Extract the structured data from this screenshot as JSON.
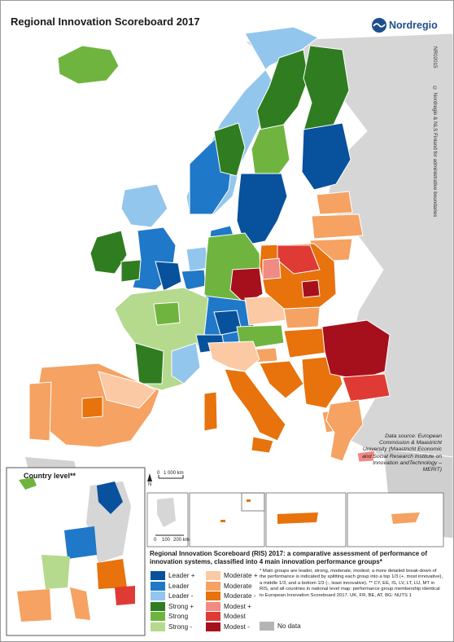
{
  "title": "Regional Innovation Scoreboard 2017",
  "logo": {
    "name": "Nordregio",
    "icon": "nordregio-wave-icon"
  },
  "map_id": "NR02015",
  "copyright": "© Nordregio & NLS Finland for administrative boundaries",
  "source": "Data source: European Commission & Maastricht University (Maastricht Economic and Social Research Institute on Innovation andTechnology – MERIT)",
  "scale_main": {
    "zero": "0",
    "label": "1 000 km",
    "north": "N"
  },
  "scale_inset": {
    "zero": "0",
    "mid": "100",
    "end": "200 km"
  },
  "inset_country": {
    "title": "Country level**"
  },
  "legend": {
    "title": "Regional Innovation Scoreboard (RIS) 2017: a comparative assessment of performance of innovation systems, classified into 4 main innovation performance groups*",
    "col1": [
      {
        "label": "Leader +",
        "color": "#08519c"
      },
      {
        "label": "Leader",
        "color": "#1f78c8"
      },
      {
        "label": "Leader -",
        "color": "#93c6ec"
      },
      {
        "label": "Strong +",
        "color": "#2f7d20"
      },
      {
        "label": "Strong",
        "color": "#6fb43f"
      },
      {
        "label": "Strong -",
        "color": "#b5d98d"
      }
    ],
    "col2": [
      {
        "label": "Moderate +",
        "color": "#fbc9a3"
      },
      {
        "label": "Moderate",
        "color": "#f5a262"
      },
      {
        "label": "Moderate -",
        "color": "#e8720c"
      },
      {
        "label": "Modest +",
        "color": "#f08a82"
      },
      {
        "label": "Modest",
        "color": "#e03a34"
      },
      {
        "label": "Modest -",
        "color": "#a6101d"
      }
    ],
    "nodata": {
      "label": "No data",
      "color": "#b4b4b4"
    },
    "note": "* Main groups are leader, strong, moderate, modest; a more detailed break-down of the performance is indicated by splitting each group into a top 1/3 (+, most innovative), a middle 1/3, and a bottom 1/3 (-, least innovative). ** CY, EE, IS, LV, LT, LU, MT in RIS, and all countries in national level map: performance group membership identical to European Innovation Scoreboard 2017. UK, FR, BE, AT, BG: NUTS 1"
  }
}
